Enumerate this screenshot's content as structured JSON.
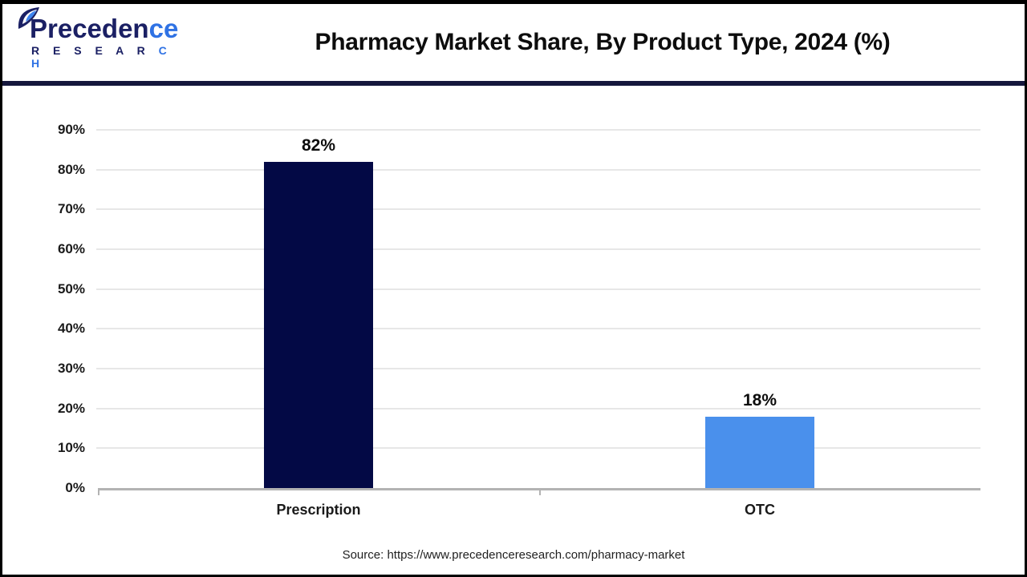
{
  "header": {
    "logo": {
      "brand_line1_navy": "Preceden",
      "brand_line1_blue": "ce",
      "brand_line2_navy": "R E S E A R",
      "brand_line2_blue": " C H"
    },
    "title": "Pharmacy Market Share, By Product Type, 2024 (%)"
  },
  "chart_data": {
    "type": "bar",
    "categories": [
      "Prescription",
      "OTC"
    ],
    "values": [
      82,
      18
    ],
    "value_labels": [
      "82%",
      "18%"
    ],
    "bar_colors": [
      "#030945",
      "#4a90ec"
    ],
    "title": "Pharmacy Market Share, By Product Type, 2024 (%)",
    "xlabel": "",
    "ylabel": "",
    "ylim": [
      0,
      90
    ],
    "yticks": [
      0,
      10,
      20,
      30,
      40,
      50,
      60,
      70,
      80,
      90
    ],
    "ytick_suffix": "%",
    "grid": true,
    "legend": "none"
  },
  "footer": {
    "source": "Source: https://www.precedenceresearch.com/pharmacy-market"
  },
  "colors": {
    "logo_navy": "#1b2064",
    "logo_blue": "#2f72e4",
    "header_rule": "#15173c",
    "bar_prescription": "#030945",
    "bar_otc": "#4a90ec",
    "gridline": "#e7e7e7",
    "axis_line": "#b3b3b3",
    "text": "#0d0d0d"
  }
}
